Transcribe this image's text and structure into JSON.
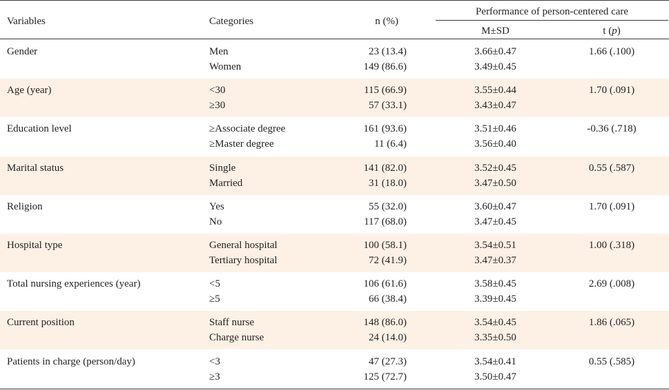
{
  "header": {
    "variables": "Variables",
    "categories": "Categories",
    "n_pct": "n (%)",
    "performance": "Performance of person-centered care",
    "msd": "M±SD",
    "t_prefix": "t (",
    "t_p": "p",
    "t_suffix": ")"
  },
  "rows": [
    {
      "variable": "Gender",
      "cat1": "Men",
      "n1": "23 (13.4)",
      "m1": "3.66±0.47",
      "cat2": "Women",
      "n2": "149 (86.6)",
      "m2": "3.49±0.45",
      "t": "1.66 (.100)"
    },
    {
      "variable": "Age (year)",
      "cat1": "<30",
      "n1": "115 (66.9)",
      "m1": "3.55±0.44",
      "cat2": "≥30",
      "n2": "57 (33.1)",
      "m2": "3.43±0.47",
      "t": "1.70 (.091)"
    },
    {
      "variable": "Education level",
      "cat1": "≥Associate degree",
      "n1": "161 (93.6)",
      "m1": "3.51±0.46",
      "cat2": "≥Master degree",
      "n2": "11 (6.4)",
      "m2": "3.56±0.40",
      "t": "-0.36 (.718)"
    },
    {
      "variable": "Marital status",
      "cat1": "Single",
      "n1": "141 (82.0)",
      "m1": "3.52±0.45",
      "cat2": "Married",
      "n2": "31 (18.0)",
      "m2": "3.47±0.50",
      "t": "0.55 (.587)"
    },
    {
      "variable": "Religion",
      "cat1": "Yes",
      "n1": "55 (32.0)",
      "m1": "3.60±0.47",
      "cat2": "No",
      "n2": "117 (68.0)",
      "m2": "3.47±0.45",
      "t": "1.70 (.091)"
    },
    {
      "variable": "Hospital type",
      "cat1": "General hospital",
      "n1": "100 (58.1)",
      "m1": "3.54±0.51",
      "cat2": "Tertiary hospital",
      "n2": "72 (41.9)",
      "m2": "3.47±0.37",
      "t": "1.00 (.318)"
    },
    {
      "variable": "Total nursing experiences (year)",
      "cat1": "<5",
      "n1": "106 (61.6)",
      "m1": "3.58±0.45",
      "cat2": "≥5",
      "n2": "66 (38.4)",
      "m2": "3.39±0.45",
      "t": "2.69 (.008)"
    },
    {
      "variable": "Current position",
      "cat1": "Staff nurse",
      "n1": "148 (86.0)",
      "m1": "3.54±0.45",
      "cat2": "Charge nurse",
      "n2": "24 (14.0)",
      "m2": "3.35±0.50",
      "t": "1.86 (.065)"
    },
    {
      "variable": "Patients in charge (person/day)",
      "cat1": "<3",
      "n1": "47 (27.3)",
      "m1": "3.54±0.41",
      "cat2": "≥3",
      "n2": "125 (72.7)",
      "m2": "3.50±0.47",
      "t": "0.55 (.585)"
    }
  ]
}
